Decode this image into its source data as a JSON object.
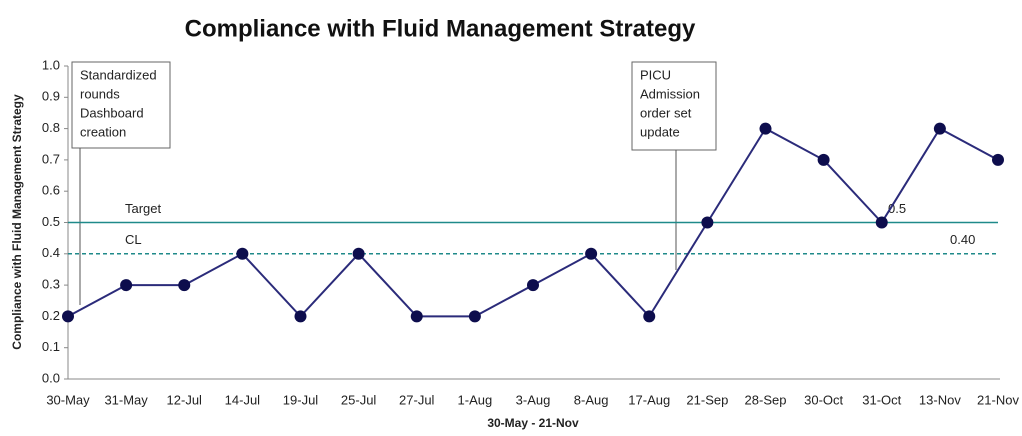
{
  "chart_data": {
    "type": "line",
    "title": "Compliance with Fluid Management Strategy",
    "x_label": "30-May - 21-Nov",
    "y_label": "Compliance with Fluid Management Strategy",
    "categories": [
      "30-May",
      "31-May",
      "12-Jul",
      "14-Jul",
      "19-Jul",
      "25-Jul",
      "27-Jul",
      "1-Aug",
      "3-Aug",
      "8-Aug",
      "17-Aug",
      "21-Sep",
      "28-Sep",
      "30-Oct",
      "31-Oct",
      "13-Nov",
      "21-Nov"
    ],
    "values": [
      0.2,
      0.3,
      0.3,
      0.4,
      0.2,
      0.4,
      0.2,
      0.2,
      0.3,
      0.4,
      0.2,
      0.5,
      0.8,
      0.7,
      0.5,
      0.8,
      0.7
    ],
    "color": "#2b2b7a",
    "marker_color": "#0d0d4d",
    "ylim": [
      0,
      1
    ],
    "yticks": [
      {
        "value": 0,
        "label": "0.0"
      },
      0.1,
      0.2,
      0.3,
      0.4,
      0.5,
      0.6,
      0.7,
      0.8,
      0.9,
      {
        "value": 1,
        "label": "1.0"
      }
    ],
    "reference_lines": [
      {
        "label": "Target",
        "value": 0.5,
        "value_label": "0.5",
        "color": "#1f8a8a",
        "style": "solid"
      },
      {
        "label": "CL",
        "value": 0.4,
        "value_label": "0.40",
        "color": "#1f8a8a",
        "style": "dashed"
      }
    ],
    "annotations": [
      {
        "lines": [
          "Standardized",
          "rounds",
          "Dashboard",
          "creation"
        ]
      },
      {
        "lines": [
          "PICU",
          "Admission",
          "order set",
          "update"
        ]
      }
    ]
  }
}
